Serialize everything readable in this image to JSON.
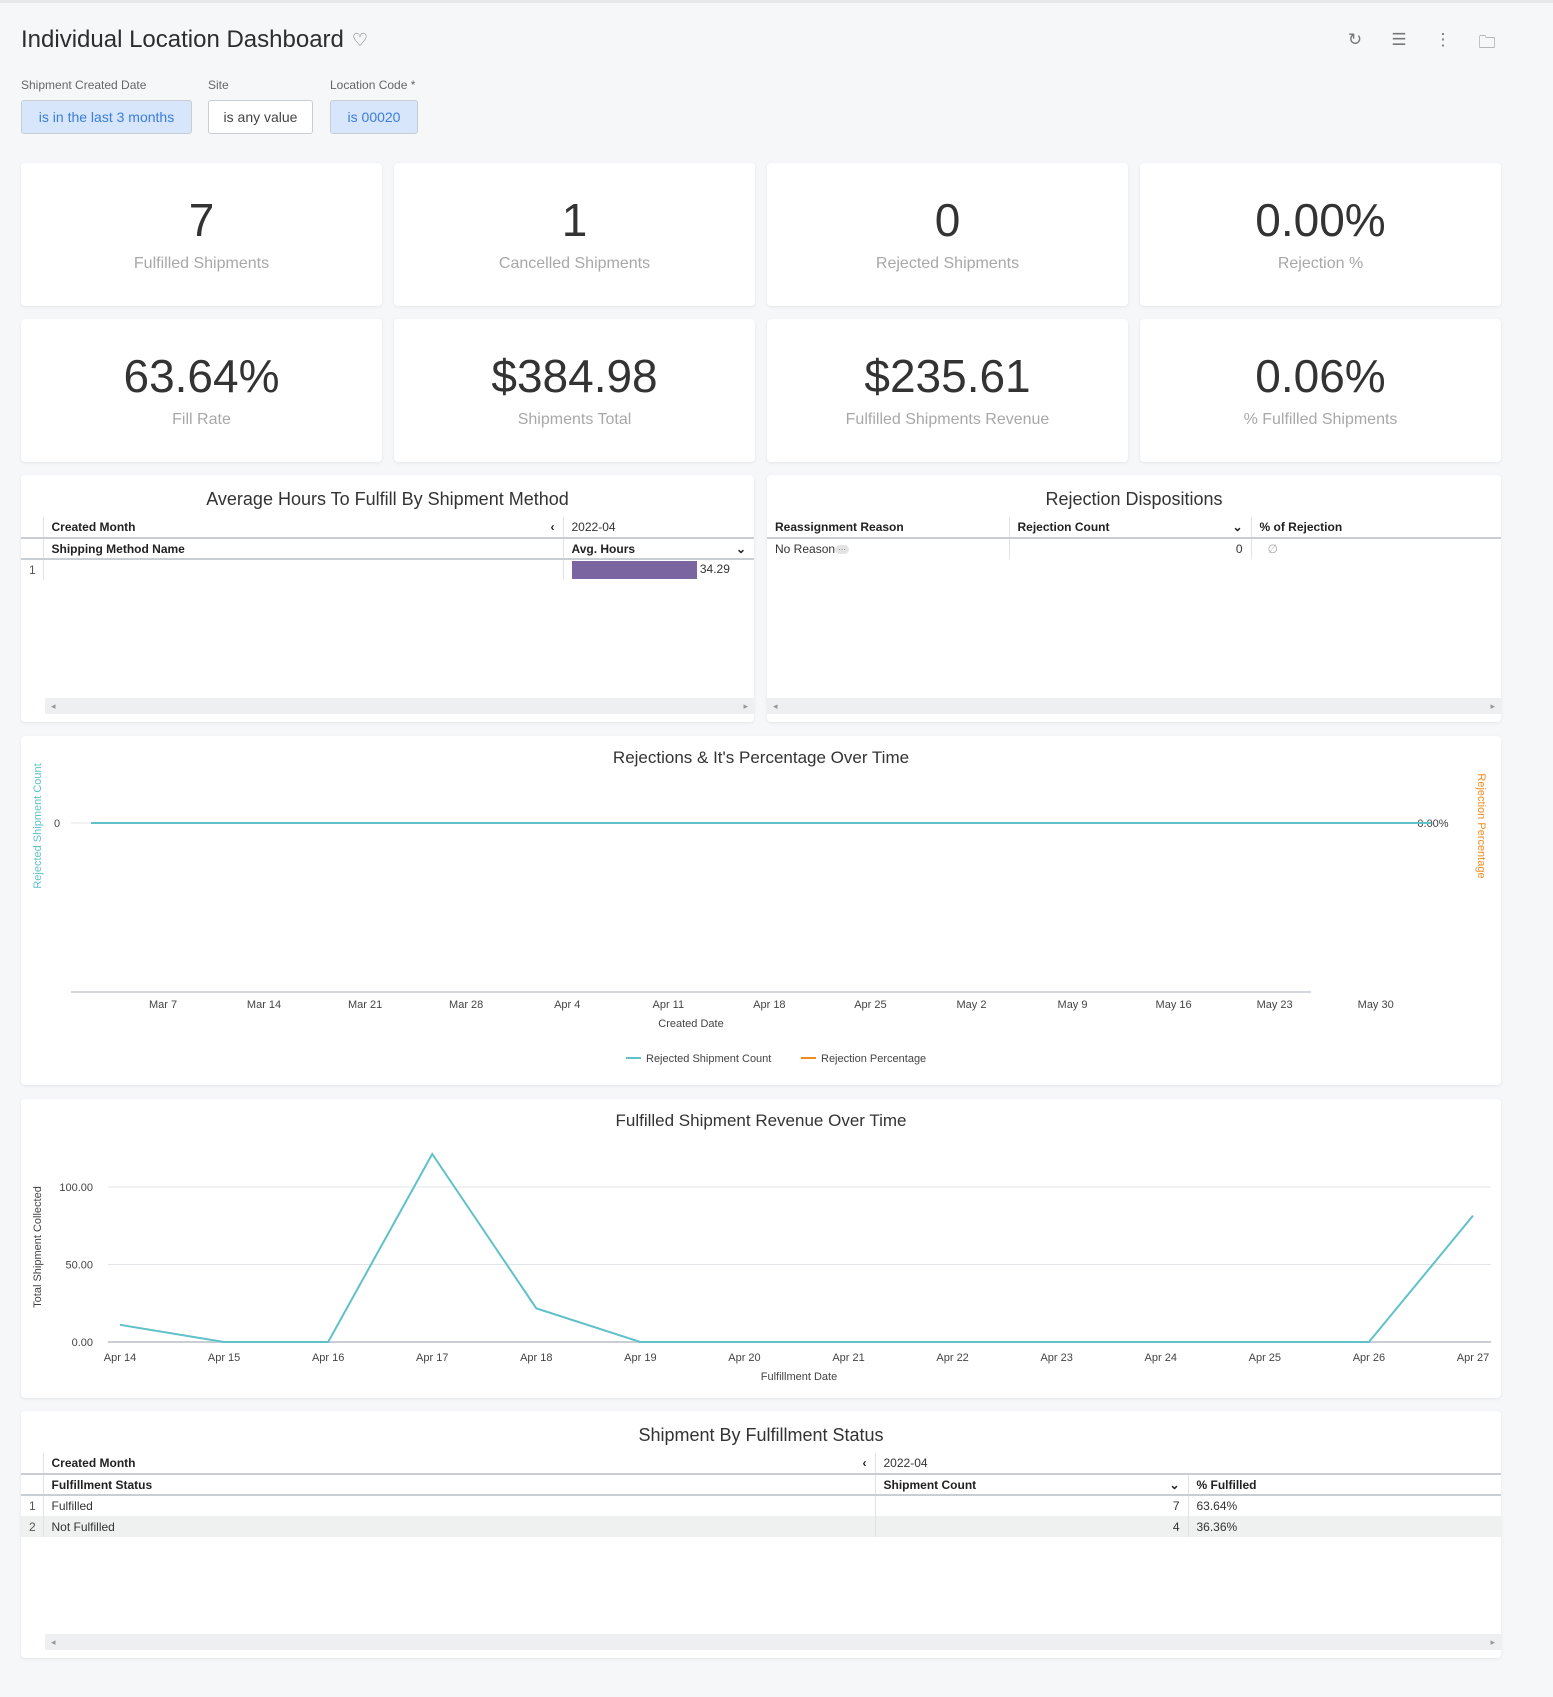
{
  "header": {
    "title": "Individual Location Dashboard",
    "icons": [
      "heart-icon",
      "refresh-icon",
      "filter-icon",
      "more-vertical-icon",
      "folder-icon"
    ]
  },
  "filters": [
    {
      "label": "Shipment Created Date",
      "value": "is in the last 3 months"
    },
    {
      "label": "Site",
      "value": "is any value"
    },
    {
      "label": "Location Code *",
      "value": "is 00020"
    }
  ],
  "kpis": [
    {
      "value": "7",
      "label": "Fulfilled Shipments"
    },
    {
      "value": "1",
      "label": "Cancelled Shipments"
    },
    {
      "value": "0",
      "label": "Rejected Shipments"
    },
    {
      "value": "0.00%",
      "label": "Rejection %"
    },
    {
      "value": "63.64%",
      "label": "Fill Rate"
    },
    {
      "value": "$384.98",
      "label": "Shipments Total"
    },
    {
      "value": "$235.61",
      "label": "Fulfilled Shipments Revenue"
    },
    {
      "value": "0.06%",
      "label": "% Fulfilled Shipments"
    }
  ],
  "avg_hours": {
    "title": "Average Hours To Fulfill By Shipment Method",
    "pivot_label": "Created Month",
    "pivot_value": "2022-04",
    "col1": "Shipping Method Name",
    "col2": "Avg. Hours",
    "rows": [
      {
        "n": "1",
        "name": "",
        "value": "34.29",
        "fraction": 1.0
      }
    ],
    "bar_color": "#7b65a0"
  },
  "rejection_disp": {
    "title": "Rejection Dispositions",
    "cols": [
      "Reassignment Reason",
      "Rejection Count",
      "% of Rejection"
    ],
    "rows": [
      {
        "reason": "No Reason",
        "count": "0",
        "pct": "∅"
      }
    ]
  },
  "chart_data": [
    {
      "type": "line",
      "title": "Rejections & It's Percentage Over Time",
      "xlabel": "Created Date",
      "ylabel": "Rejected Shipment Count",
      "y2label": "Rejection Percentage",
      "x": [
        "Mar 7",
        "Mar 14",
        "Mar 21",
        "Mar 28",
        "Apr 4",
        "Apr 11",
        "Apr 18",
        "Apr 25",
        "May 2",
        "May 9",
        "May 16",
        "May 23",
        "May 30"
      ],
      "yticks": [
        "0"
      ],
      "y2ticks": [
        "0.00%"
      ],
      "series": [
        {
          "name": "Rejected Shipment Count",
          "color": "#5fc1c9",
          "values": [
            0,
            0,
            0,
            0,
            0,
            0,
            0,
            0,
            0,
            0,
            0,
            0,
            0
          ]
        },
        {
          "name": "Rejection Percentage",
          "color": "#f28a1e",
          "values": [
            0,
            0,
            0,
            0,
            0,
            0,
            0,
            0,
            0,
            0,
            0,
            0,
            0
          ]
        }
      ],
      "legend": "bottom"
    },
    {
      "type": "line",
      "title": "Fulfilled Shipment Revenue Over Time",
      "xlabel": "Fulfillment Date",
      "ylabel": "Total Shipment Collected",
      "x": [
        "Apr 14",
        "Apr 15",
        "Apr 16",
        "Apr 17",
        "Apr 18",
        "Apr 19",
        "Apr 20",
        "Apr 21",
        "Apr 22",
        "Apr 23",
        "Apr 24",
        "Apr 25",
        "Apr 26",
        "Apr 27"
      ],
      "yticks": [
        "0.00",
        "50.00",
        "100.00"
      ],
      "ylim": [
        0,
        130
      ],
      "grid": true,
      "series": [
        {
          "color": "#5fc1c9",
          "values": [
            11.1,
            0,
            0,
            121.3,
            21.7,
            0,
            0,
            0,
            0,
            0,
            0,
            0,
            0,
            81.5
          ]
        }
      ]
    }
  ],
  "status_table": {
    "title": "Shipment By Fulfillment Status",
    "pivot_label": "Created Month",
    "pivot_value": "2022-04",
    "cols": [
      "Fulfillment Status",
      "Shipment Count",
      "% Fulfilled"
    ],
    "rows": [
      {
        "n": "1",
        "status": "Fulfilled",
        "count": "7",
        "pct": "63.64%"
      },
      {
        "n": "2",
        "status": "Not Fulfilled",
        "count": "4",
        "pct": "36.36%"
      }
    ]
  }
}
